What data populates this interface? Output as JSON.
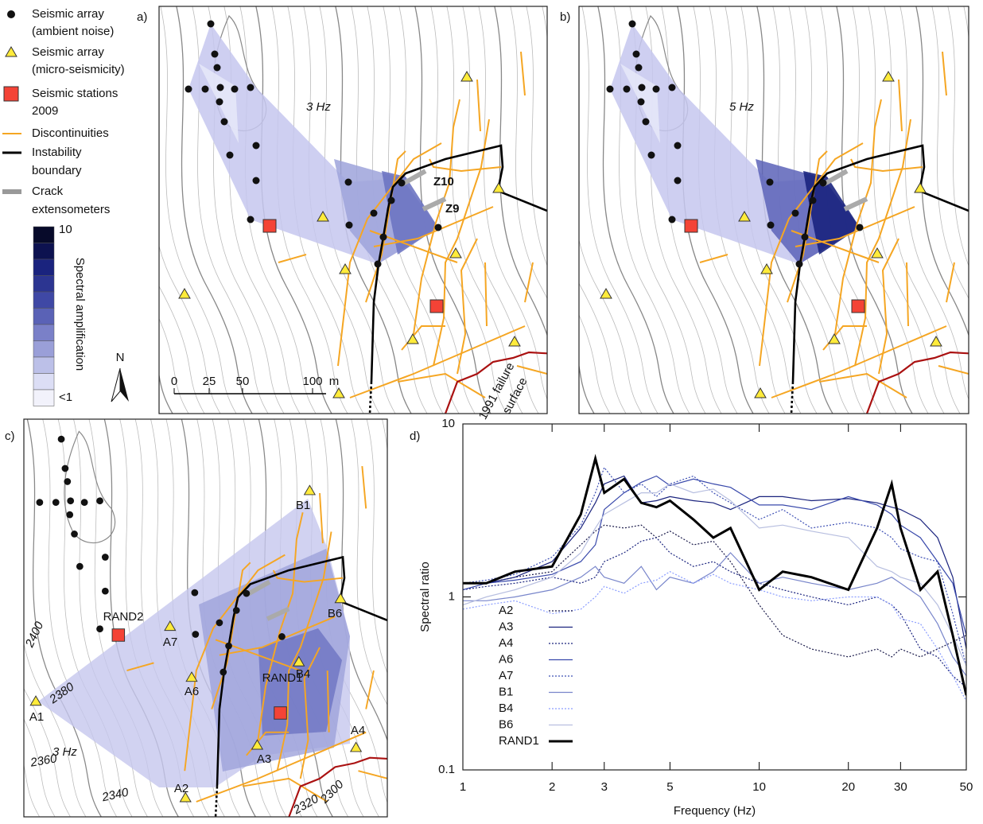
{
  "legend": {
    "items": [
      [
        "Seismic array",
        "(ambient noise)"
      ],
      [
        "Seismic array",
        "(micro-seismicity)"
      ],
      [
        "Seismic stations",
        "2009"
      ],
      [
        "Discontinuities"
      ],
      [
        "Instability",
        "boundary"
      ],
      [
        "Crack",
        "extensometers"
      ]
    ],
    "colorbar": {
      "title": "Spectral amplification",
      "top_label": "10",
      "bottom_label": "<1"
    },
    "north": "N"
  },
  "panels": {
    "a": {
      "label": "a)",
      "frequency": "3 Hz",
      "crack_labels": [
        "Z10",
        "Z9"
      ],
      "scale_ticks": [
        "0",
        "25",
        "50",
        "100"
      ],
      "scale_unit": "m",
      "failure_label": [
        "1991 failure",
        "surface"
      ]
    },
    "b": {
      "label": "b)",
      "frequency": "5 Hz"
    },
    "c": {
      "label": "c)",
      "frequency": "3 Hz",
      "station_labels": [
        "RAND2",
        "A7",
        "A6",
        "A1",
        "A2",
        "A3",
        "A4",
        "B1",
        "B4",
        "B6",
        "RAND1"
      ],
      "contour_labels": [
        "2400",
        "2380",
        "2360",
        "2340",
        "2320",
        "2300"
      ]
    }
  },
  "chart_data": {
    "type": "line",
    "panel_label": "d)",
    "x_label": "Frequency (Hz)",
    "y_label": "Spectral ratio",
    "xlog": true,
    "ylog": true,
    "xlim": [
      1,
      50
    ],
    "ylim": [
      0.1,
      10
    ],
    "xticks": [
      1,
      2,
      3,
      5,
      10,
      20,
      30,
      50
    ],
    "yticks": [
      0.1,
      1,
      10
    ],
    "x": [
      1,
      1.2,
      1.5,
      2,
      2.5,
      2.8,
      3,
      3.5,
      4,
      4.5,
      5,
      6,
      7,
      8,
      10,
      12,
      15,
      20,
      25,
      28,
      30,
      35,
      40,
      45,
      50
    ],
    "series": [
      {
        "name": "A2",
        "color": "#1a1a4a",
        "dashed": true,
        "width": 1.2,
        "values": [
          1.2,
          1.2,
          1.3,
          1.4,
          2,
          2.4,
          2.6,
          2.5,
          2.6,
          2.2,
          2.4,
          2,
          2.1,
          1.6,
          0.9,
          0.6,
          0.5,
          0.45,
          0.5,
          0.45,
          0.5,
          0.45,
          0.5,
          0.55,
          0.6
        ]
      },
      {
        "name": "A3",
        "color": "#1a237e",
        "dashed": false,
        "width": 1.2,
        "values": [
          1.2,
          1.2,
          1.3,
          1.6,
          2.5,
          3.5,
          4.5,
          5,
          3.5,
          3.6,
          3.8,
          3.6,
          3.5,
          3.2,
          3.8,
          3.8,
          3.6,
          3.7,
          3.5,
          3.3,
          3.2,
          2.8,
          2.2,
          1.3,
          0.5
        ]
      },
      {
        "name": "A4",
        "color": "#1a237e",
        "dashed": true,
        "width": 1.2,
        "values": [
          1.1,
          1.15,
          1.2,
          1.3,
          1.2,
          1.3,
          1.6,
          1.8,
          2.1,
          2.2,
          1.8,
          1.5,
          1.6,
          1.4,
          1.2,
          1.1,
          1.0,
          0.9,
          1.0,
          0.9,
          0.8,
          0.5,
          0.45,
          0.35,
          0.3
        ]
      },
      {
        "name": "A6",
        "color": "#3949ab",
        "dashed": false,
        "width": 1.2,
        "values": [
          1.1,
          1.2,
          1.25,
          1.35,
          1.6,
          2,
          3.2,
          4,
          4.6,
          5,
          4.4,
          4.8,
          4.5,
          4.3,
          3.4,
          3.4,
          3.2,
          3.8,
          3.4,
          3.0,
          2.6,
          2.2,
          1.6,
          1.2,
          0.6
        ]
      },
      {
        "name": "A7",
        "color": "#3f51b5",
        "dashed": true,
        "width": 1.2,
        "values": [
          1.2,
          1.25,
          1.35,
          1.7,
          2.6,
          4,
          5.6,
          4,
          4.5,
          3.8,
          4.5,
          5,
          4,
          3.5,
          2.8,
          3.2,
          2.5,
          2.7,
          2.5,
          2.2,
          1.9,
          1.7,
          1.6,
          0.8,
          0.4
        ]
      },
      {
        "name": "B1",
        "color": "#7986cb",
        "dashed": false,
        "width": 1.2,
        "values": [
          0.95,
          0.95,
          1.0,
          1.1,
          1.3,
          1.5,
          1.3,
          1.2,
          1.5,
          1.1,
          1.3,
          1.2,
          1.4,
          1.8,
          1.2,
          1.3,
          1.2,
          1.1,
          1.2,
          1.3,
          1.2,
          1.0,
          0.7,
          0.45,
          0.35
        ]
      },
      {
        "name": "B4",
        "color": "#8c9eff",
        "dashed": true,
        "width": 1.2,
        "values": [
          0.85,
          0.9,
          0.95,
          0.8,
          0.85,
          1.0,
          1.15,
          1.05,
          1.2,
          1.25,
          1.4,
          1.2,
          1.35,
          1.2,
          1.1,
          1.0,
          0.95,
          1.0,
          1.0,
          0.9,
          0.75,
          0.7,
          0.5,
          0.35,
          0.25
        ]
      },
      {
        "name": "B6",
        "color": "#b8bfe0",
        "dashed": false,
        "width": 1.2,
        "values": [
          0.9,
          1.0,
          1.1,
          1.3,
          1.8,
          2.5,
          3,
          3.5,
          4,
          4,
          4.5,
          4,
          4.2,
          3.6,
          2.5,
          2.6,
          2.4,
          2.2,
          1.5,
          1.4,
          1.3,
          1.2,
          0.9,
          0.6,
          0.4
        ]
      },
      {
        "name": "RAND1",
        "color": "#000000",
        "dashed": false,
        "width": 3,
        "values": [
          1.2,
          1.2,
          1.4,
          1.5,
          3,
          6.3,
          4,
          4.8,
          3.5,
          3.3,
          3.6,
          2.8,
          2.2,
          2.5,
          1.1,
          1.4,
          1.3,
          1.1,
          2.5,
          4.5,
          2.5,
          1.1,
          1.4,
          0.6,
          0.27
        ]
      }
    ]
  }
}
